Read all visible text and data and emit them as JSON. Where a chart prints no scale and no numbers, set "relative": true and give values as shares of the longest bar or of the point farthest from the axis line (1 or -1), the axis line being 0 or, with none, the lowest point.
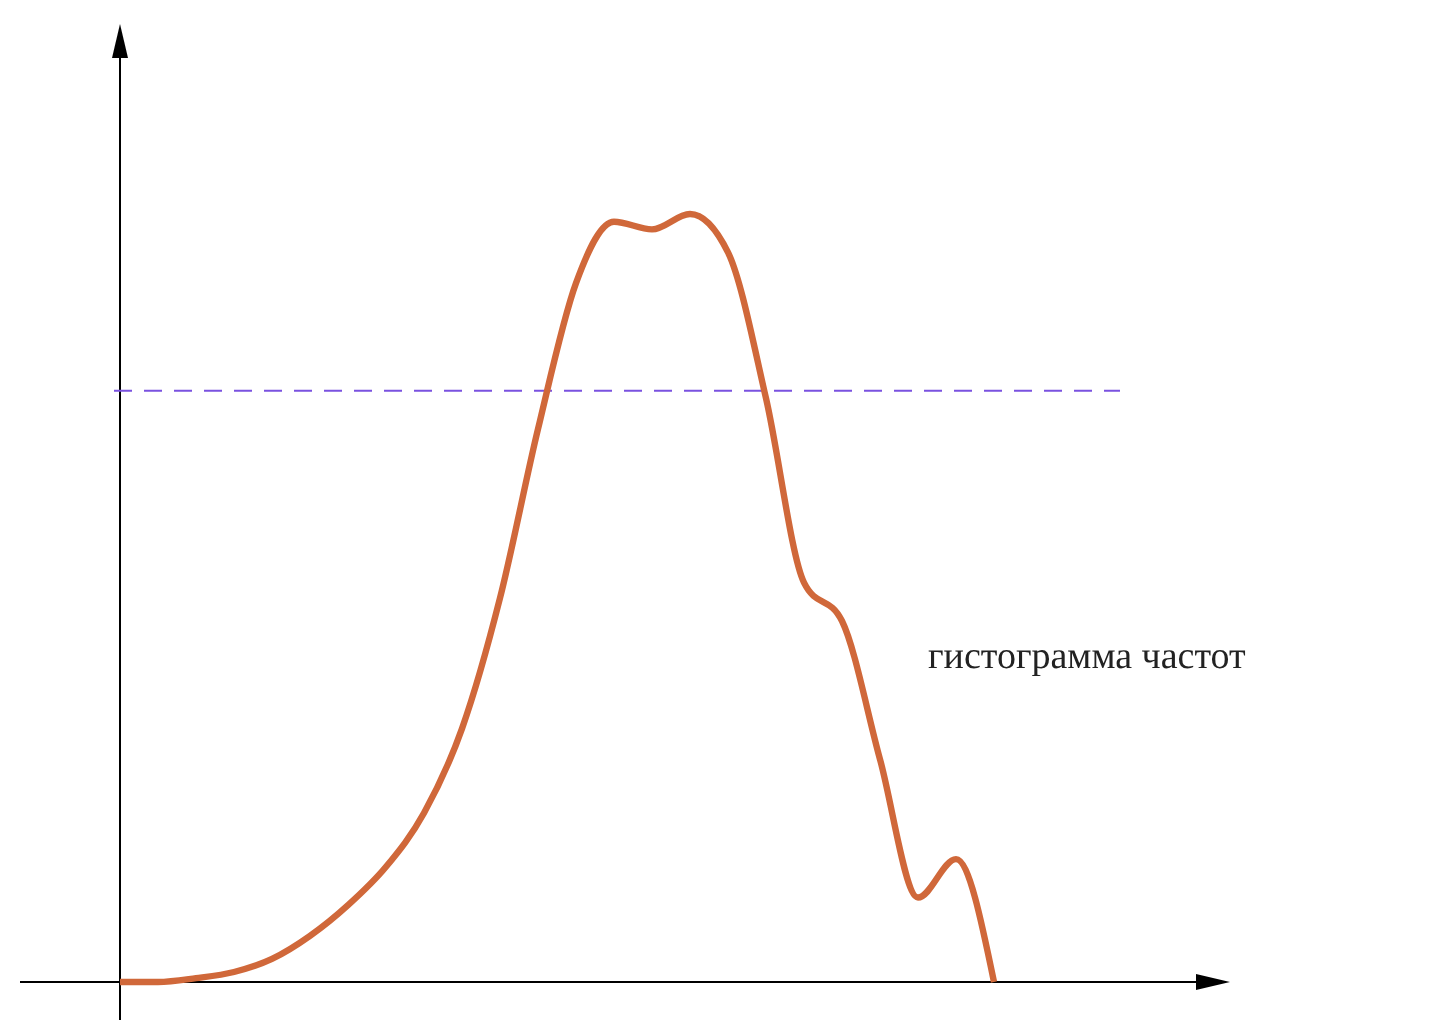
{
  "chart_data": {
    "type": "line",
    "relative": true,
    "categories": [
      null,
      null,
      null,
      null,
      null,
      null,
      null,
      null,
      null,
      null,
      null,
      null,
      null,
      null,
      null,
      null,
      null,
      null,
      null,
      null,
      null,
      null,
      null,
      null,
      null,
      null,
      null,
      null,
      null,
      null
    ],
    "series": [
      {
        "color": "#d0683a",
        "values": [
          0,
          0,
          0.005,
          0.013,
          0.03,
          0.06,
          0.1,
          0.15,
          0.22,
          0.33,
          0.5,
          0.72,
          0.91,
          0.99,
          0.98,
          1.0,
          0.95,
          0.76,
          0.52,
          0.47,
          0.29,
          0.11,
          0.16,
          0,
          null,
          null,
          null,
          null,
          null,
          null
        ]
      }
    ],
    "ref_lines": [
      {
        "axis": "y",
        "value": 0.77,
        "color": "#7a52e0",
        "line_style": "dashed"
      }
    ],
    "annotations": [
      "гистограмма частот"
    ],
    "marker": "none",
    "line_style": "solid"
  }
}
